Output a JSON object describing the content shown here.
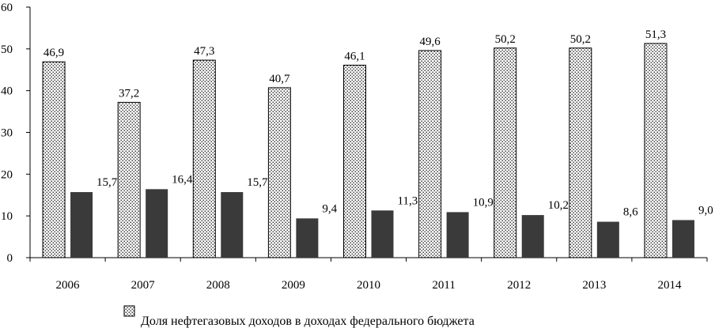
{
  "chart_data": {
    "type": "bar",
    "categories": [
      "2006",
      "2007",
      "2008",
      "2009",
      "2010",
      "2011",
      "2012",
      "2013",
      "2014"
    ],
    "series": [
      {
        "name": "Доля нефтегазовых доходов в доходах федерального бюджета",
        "values": [
          46.9,
          37.2,
          47.3,
          40.7,
          46.1,
          49.6,
          50.2,
          50.2,
          51.3
        ],
        "labels": [
          "46,9",
          "37,2",
          "47,3",
          "40,7",
          "46,1",
          "49,6",
          "50,2",
          "50,2",
          "51,3"
        ],
        "fill": "dotted",
        "color": "#000000"
      },
      {
        "values": [
          15.7,
          16.4,
          15.7,
          9.4,
          11.3,
          10.9,
          10.2,
          8.6,
          9.0
        ],
        "labels": [
          "15,7",
          "16,4",
          "15,7",
          "9,4",
          "11,3",
          "10,9",
          "10,2",
          "8,6",
          "9,0"
        ],
        "fill": "solid",
        "color": "#3a3a3a"
      }
    ],
    "ylim": [
      0,
      60
    ],
    "yticks": [
      "0",
      "10",
      "20",
      "30",
      "40",
      "50",
      "60"
    ],
    "grid": false,
    "legend_position": "bottom"
  }
}
